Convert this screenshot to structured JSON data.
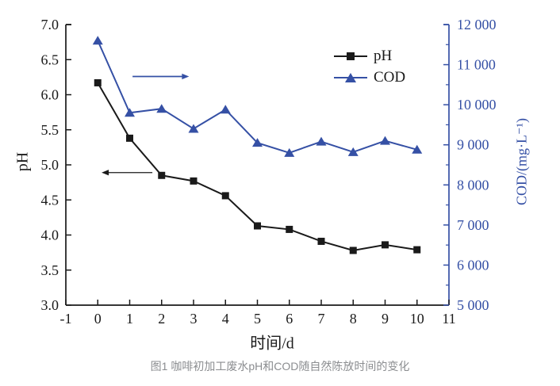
{
  "figure": {
    "caption": "图1 咖啡初加工废水pH和COD随自然陈放时间的变化"
  },
  "colors": {
    "ph_black": "#1a1a1a",
    "cod_blue": "#3550a5",
    "caption_gray": "#8b8d90"
  },
  "chart_data": {
    "type": "line",
    "x": [
      0,
      1,
      2,
      3,
      4,
      5,
      6,
      7,
      8,
      9,
      10
    ],
    "series": [
      {
        "name": "pH",
        "axis": "left",
        "color": "#1a1a1a",
        "marker": "square",
        "values": [
          6.17,
          5.38,
          4.85,
          4.77,
          4.56,
          4.13,
          4.08,
          3.91,
          3.78,
          3.86,
          3.79
        ]
      },
      {
        "name": "COD",
        "axis": "right",
        "color": "#3550a5",
        "marker": "triangle",
        "values": [
          11600,
          9800,
          9900,
          9400,
          9880,
          9050,
          8800,
          9080,
          8820,
          9100,
          8880
        ]
      }
    ],
    "title": "",
    "xlabel": "时间/d",
    "ylabel_left": "pH",
    "ylabel_right": "COD/(mg·L⁻¹)",
    "xlim": [
      -1,
      11
    ],
    "ylim_left": [
      3.0,
      7.0
    ],
    "ylim_right": [
      5000,
      12000
    ],
    "x_ticks": [
      "-1",
      "0",
      "1",
      "2",
      "3",
      "4",
      "5",
      "6",
      "7",
      "8",
      "9",
      "10",
      "11"
    ],
    "left_ticks": [
      "3.0",
      "3.5",
      "4.0",
      "4.5",
      "5.0",
      "5.5",
      "6.0",
      "6.5",
      "7.0"
    ],
    "right_ticks": [
      "5 000",
      "6 000",
      "7 000",
      "8 000",
      "9 000",
      "10 000",
      "11 000",
      "12 000"
    ],
    "right_minor_step": 500,
    "grid": false,
    "legend_position": "upper-right-inside",
    "annotations": [
      {
        "name": "cod-right-axis-arrow",
        "color": "#3550a5",
        "x_start": 1.09,
        "x_end": 2.86,
        "y_ph": 6.26,
        "head": "right"
      },
      {
        "name": "ph-left-axis-arrow",
        "color": "#1a1a1a",
        "x_start": 1.71,
        "x_end": 0.12,
        "y_ph": 4.89,
        "head": "left"
      }
    ]
  }
}
